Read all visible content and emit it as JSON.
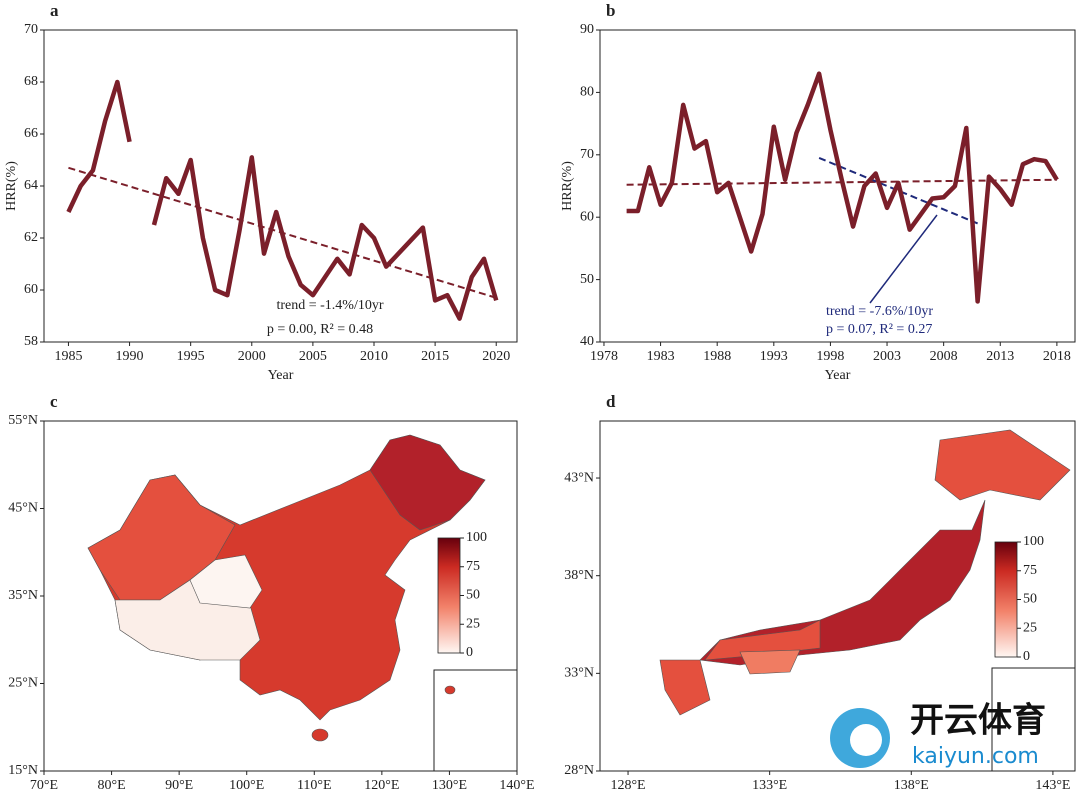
{
  "chart_data": [
    {
      "type": "line",
      "panel": "a",
      "xlabel": "Year",
      "ylabel": "HRR(%)",
      "x": [
        1985,
        1986,
        1987,
        1988,
        1989,
        1990,
        1991,
        1992,
        1993,
        1994,
        1995,
        1996,
        1997,
        1998,
        1999,
        2000,
        2001,
        2002,
        2003,
        2004,
        2005,
        2006,
        2007,
        2008,
        2009,
        2010,
        2011,
        2012,
        2013,
        2014,
        2015,
        2016,
        2017,
        2018,
        2019,
        2020
      ],
      "series": [
        {
          "color": "#7b1f2a",
          "values": [
            63.0,
            64.0,
            64.6,
            66.5,
            68.0,
            65.7,
            null,
            62.5,
            64.3,
            63.7,
            65.0,
            62.0,
            60.0,
            59.8,
            62.3,
            65.1,
            61.4,
            63.0,
            61.3,
            60.2,
            59.8,
            60.5,
            61.2,
            60.6,
            62.5,
            62.0,
            60.9,
            61.4,
            61.9,
            62.4,
            59.6,
            59.8,
            58.9,
            60.5,
            61.2,
            59.6
          ]
        }
      ],
      "trend_lines": [
        {
          "color": "#7b1f2a",
          "x": [
            1985,
            2020
          ],
          "values": [
            64.7,
            59.7
          ]
        }
      ],
      "annotations": [
        "trend = -1.4%/10yr",
        "p = 0.00,  R² = 0.48"
      ],
      "xlim": [
        1983,
        2021.7
      ],
      "xticks": [
        1985,
        1990,
        1995,
        2000,
        2005,
        2010,
        2015,
        2020
      ],
      "ylim": [
        58,
        70
      ],
      "yticks": [
        58,
        60,
        62,
        64,
        66,
        68,
        70
      ]
    },
    {
      "type": "line",
      "panel": "b",
      "xlabel": "Year",
      "ylabel": "HRR(%)",
      "x": [
        1980,
        1981,
        1982,
        1983,
        1984,
        1985,
        1986,
        1987,
        1988,
        1989,
        1990,
        1991,
        1992,
        1993,
        1994,
        1995,
        1996,
        1997,
        1998,
        1999,
        2000,
        2001,
        2002,
        2003,
        2004,
        2005,
        2006,
        2007,
        2008,
        2009,
        2010,
        2011,
        2012,
        2013,
        2014,
        2015,
        2016,
        2017,
        2018
      ],
      "series": [
        {
          "color": "#7b1f2a",
          "values": [
            61,
            61,
            68,
            62,
            65.5,
            78,
            71,
            72.2,
            64,
            65.5,
            60,
            54.5,
            60.5,
            74.5,
            66,
            73.5,
            78,
            83,
            74,
            66,
            58.5,
            65,
            67,
            61.5,
            65.5,
            58,
            60.5,
            63,
            63.2,
            65,
            74.3,
            46.5,
            66.5,
            64.5,
            62,
            68.5,
            69.3,
            69.0,
            66
          ]
        }
      ],
      "trend_lines": [
        {
          "color": "#7b1f2a",
          "x": [
            1980,
            2018
          ],
          "values": [
            65.2,
            66
          ]
        },
        {
          "color": "#1f2a7b",
          "x": [
            1997,
            2011
          ],
          "values": [
            69.5,
            59
          ]
        }
      ],
      "annotations": [
        "trend = -7.6%/10yr",
        "p = 0.07,  R² = 0.27"
      ],
      "xlim": [
        1977.65,
        2019.6
      ],
      "xticks": [
        1978,
        1983,
        1988,
        1993,
        1998,
        2003,
        2008,
        2013,
        2018
      ],
      "ylim": [
        40,
        90
      ],
      "yticks": [
        40,
        50,
        60,
        70,
        80,
        90
      ]
    },
    {
      "type": "map",
      "panel": "c",
      "xlim": [
        70,
        140
      ],
      "xticks": [
        {
          "value": 70,
          "label": "70°E"
        },
        {
          "value": 80,
          "label": "80°E"
        },
        {
          "value": 90,
          "label": "90°E"
        },
        {
          "value": 100,
          "label": "100°E"
        },
        {
          "value": 110,
          "label": "110°E"
        },
        {
          "value": 120,
          "label": "120°E"
        },
        {
          "value": 130,
          "label": "130°E"
        },
        {
          "value": 140,
          "label": "140°E"
        }
      ],
      "ylim": [
        15,
        55
      ],
      "yticks": [
        {
          "value": 15,
          "label": "15°N"
        },
        {
          "value": 25,
          "label": "25°N"
        },
        {
          "value": 35,
          "label": "35°N"
        },
        {
          "value": 45,
          "label": "45°N"
        },
        {
          "value": 55,
          "label": "55°N"
        }
      ],
      "cbar_lim": [
        0,
        100
      ],
      "cbar_ticks": [
        0,
        25,
        50,
        75,
        100
      ]
    },
    {
      "type": "map",
      "panel": "d",
      "xlim": [
        127.01,
        143.78
      ],
      "xticks": [
        {
          "value": 128,
          "label": "128°E"
        },
        {
          "value": 133,
          "label": "133°E"
        },
        {
          "value": 138,
          "label": "138°E"
        },
        {
          "value": 143,
          "label": "143°E"
        }
      ],
      "ylim": [
        28,
        45.92
      ],
      "yticks": [
        {
          "value": 28,
          "label": "28°N"
        },
        {
          "value": 33,
          "label": "33°N"
        },
        {
          "value": 38,
          "label": "38°N"
        },
        {
          "value": 43,
          "label": "43°N"
        }
      ],
      "cbar_lim": [
        0,
        100
      ],
      "cbar_ticks": [
        0,
        25,
        50,
        75,
        100
      ]
    }
  ],
  "watermark": {
    "name": "开云体育",
    "url": "kaiyun.com"
  }
}
